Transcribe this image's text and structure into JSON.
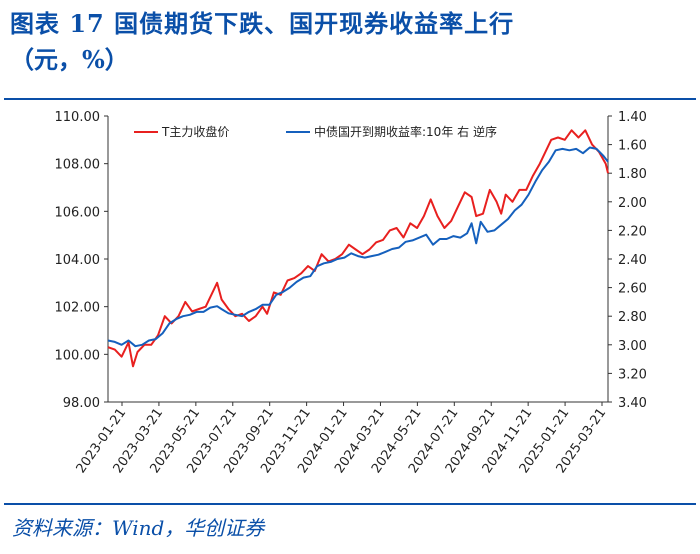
{
  "title": {
    "line1": "图表 17   国债期货下跌、国开现券收益率上行",
    "line2": "（元，%）"
  },
  "source": "资料来源：Wind，华创证券",
  "colors": {
    "series1": "#e8201f",
    "series2": "#1560bd",
    "title": "#0a4fa8",
    "axis": "#333333"
  },
  "chart_data": {
    "type": "line",
    "title": "国债期货下跌、国开现券收益率上行",
    "unit": "（元，%）",
    "x_ticks": [
      "2023-01-21",
      "2023-03-21",
      "2023-05-21",
      "2023-07-21",
      "2023-09-21",
      "2023-11-21",
      "2024-01-21",
      "2024-03-21",
      "2024-05-21",
      "2024-07-21",
      "2024-09-21",
      "2024-11-21",
      "2025-01-21",
      "2025-03-21"
    ],
    "left_axis": {
      "min": 98.0,
      "max": 110.0,
      "ticks": [
        "98.00",
        "100.00",
        "102.00",
        "104.00",
        "106.00",
        "108.00",
        "110.00"
      ]
    },
    "right_axis": {
      "min": 1.4,
      "max": 3.4,
      "reversed": true,
      "ticks": [
        "1.40",
        "1.60",
        "1.80",
        "2.00",
        "2.20",
        "2.40",
        "2.60",
        "2.80",
        "3.00",
        "3.20",
        "3.40"
      ]
    },
    "series": [
      {
        "name": "T主力收盘价",
        "axis": "left",
        "points": [
          [
            0,
            100.3
          ],
          [
            0.3,
            100.2
          ],
          [
            0.6,
            99.9
          ],
          [
            0.9,
            100.5
          ],
          [
            1.1,
            99.5
          ],
          [
            1.3,
            100.1
          ],
          [
            1.6,
            100.4
          ],
          [
            1.9,
            100.4
          ],
          [
            2.2,
            100.8
          ],
          [
            2.5,
            101.6
          ],
          [
            2.8,
            101.3
          ],
          [
            3.1,
            101.6
          ],
          [
            3.4,
            102.2
          ],
          [
            3.7,
            101.8
          ],
          [
            4.0,
            101.9
          ],
          [
            4.3,
            102.0
          ],
          [
            4.6,
            102.6
          ],
          [
            4.8,
            103.0
          ],
          [
            5.0,
            102.3
          ],
          [
            5.3,
            101.9
          ],
          [
            5.6,
            101.6
          ],
          [
            5.9,
            101.7
          ],
          [
            6.2,
            101.4
          ],
          [
            6.5,
            101.6
          ],
          [
            6.8,
            102.0
          ],
          [
            7.0,
            101.7
          ],
          [
            7.3,
            102.6
          ],
          [
            7.6,
            102.5
          ],
          [
            7.9,
            103.1
          ],
          [
            8.2,
            103.2
          ],
          [
            8.5,
            103.4
          ],
          [
            8.8,
            103.7
          ],
          [
            9.1,
            103.5
          ],
          [
            9.4,
            104.2
          ],
          [
            9.7,
            103.9
          ],
          [
            10.0,
            104.0
          ],
          [
            10.3,
            104.2
          ],
          [
            10.6,
            104.6
          ],
          [
            10.9,
            104.4
          ],
          [
            11.2,
            104.2
          ],
          [
            11.5,
            104.4
          ],
          [
            11.8,
            104.7
          ],
          [
            12.1,
            104.8
          ],
          [
            12.4,
            105.2
          ],
          [
            12.7,
            105.3
          ],
          [
            13.0,
            104.9
          ],
          [
            13.3,
            105.5
          ],
          [
            13.6,
            105.3
          ],
          [
            13.9,
            105.8
          ],
          [
            14.2,
            106.5
          ],
          [
            14.5,
            105.8
          ],
          [
            14.8,
            105.3
          ],
          [
            15.1,
            105.6
          ],
          [
            15.4,
            106.2
          ],
          [
            15.7,
            106.8
          ],
          [
            16.0,
            106.6
          ],
          [
            16.2,
            105.8
          ],
          [
            16.5,
            105.9
          ],
          [
            16.8,
            106.9
          ],
          [
            17.1,
            106.4
          ],
          [
            17.3,
            105.9
          ],
          [
            17.5,
            106.7
          ],
          [
            17.8,
            106.4
          ],
          [
            18.1,
            106.9
          ],
          [
            18.4,
            106.9
          ],
          [
            18.7,
            107.5
          ],
          [
            19.0,
            108.0
          ],
          [
            19.3,
            108.6
          ],
          [
            19.5,
            109.0
          ],
          [
            19.8,
            109.1
          ],
          [
            20.1,
            109.0
          ],
          [
            20.4,
            109.4
          ],
          [
            20.7,
            109.1
          ],
          [
            21.0,
            109.4
          ],
          [
            21.3,
            108.8
          ],
          [
            21.6,
            108.5
          ],
          [
            21.9,
            108.0
          ],
          [
            22.0,
            107.6
          ]
        ]
      },
      {
        "name": "中债国开到期收益率:10年 右 逆序",
        "axis": "right",
        "points": [
          [
            0,
            2.97
          ],
          [
            0.3,
            2.98
          ],
          [
            0.6,
            3.0
          ],
          [
            0.9,
            2.97
          ],
          [
            1.2,
            3.01
          ],
          [
            1.5,
            3.0
          ],
          [
            1.8,
            2.97
          ],
          [
            2.1,
            2.96
          ],
          [
            2.4,
            2.92
          ],
          [
            2.7,
            2.85
          ],
          [
            3.0,
            2.82
          ],
          [
            3.3,
            2.8
          ],
          [
            3.6,
            2.79
          ],
          [
            3.9,
            2.77
          ],
          [
            4.2,
            2.77
          ],
          [
            4.5,
            2.74
          ],
          [
            4.8,
            2.73
          ],
          [
            5.0,
            2.75
          ],
          [
            5.3,
            2.78
          ],
          [
            5.6,
            2.79
          ],
          [
            5.9,
            2.8
          ],
          [
            6.2,
            2.77
          ],
          [
            6.5,
            2.75
          ],
          [
            6.8,
            2.72
          ],
          [
            7.1,
            2.72
          ],
          [
            7.4,
            2.65
          ],
          [
            7.7,
            2.63
          ],
          [
            8.0,
            2.6
          ],
          [
            8.3,
            2.56
          ],
          [
            8.6,
            2.53
          ],
          [
            8.9,
            2.52
          ],
          [
            9.2,
            2.45
          ],
          [
            9.5,
            2.43
          ],
          [
            9.8,
            2.42
          ],
          [
            10.1,
            2.4
          ],
          [
            10.4,
            2.39
          ],
          [
            10.7,
            2.36
          ],
          [
            11.0,
            2.38
          ],
          [
            11.3,
            2.39
          ],
          [
            11.6,
            2.38
          ],
          [
            11.9,
            2.37
          ],
          [
            12.2,
            2.35
          ],
          [
            12.5,
            2.33
          ],
          [
            12.8,
            2.32
          ],
          [
            13.1,
            2.28
          ],
          [
            13.4,
            2.27
          ],
          [
            13.7,
            2.25
          ],
          [
            14.0,
            2.23
          ],
          [
            14.3,
            2.3
          ],
          [
            14.6,
            2.26
          ],
          [
            14.9,
            2.26
          ],
          [
            15.2,
            2.24
          ],
          [
            15.5,
            2.25
          ],
          [
            15.8,
            2.22
          ],
          [
            16.0,
            2.15
          ],
          [
            16.2,
            2.29
          ],
          [
            16.4,
            2.14
          ],
          [
            16.7,
            2.21
          ],
          [
            17.0,
            2.2
          ],
          [
            17.3,
            2.16
          ],
          [
            17.6,
            2.12
          ],
          [
            17.9,
            2.06
          ],
          [
            18.2,
            2.02
          ],
          [
            18.5,
            1.95
          ],
          [
            18.8,
            1.86
          ],
          [
            19.1,
            1.78
          ],
          [
            19.4,
            1.72
          ],
          [
            19.7,
            1.64
          ],
          [
            20.0,
            1.63
          ],
          [
            20.3,
            1.64
          ],
          [
            20.6,
            1.63
          ],
          [
            20.9,
            1.66
          ],
          [
            21.2,
            1.62
          ],
          [
            21.5,
            1.63
          ],
          [
            21.8,
            1.68
          ],
          [
            22.0,
            1.72
          ]
        ]
      }
    ],
    "x_range": [
      0,
      22
    ],
    "legend_position": "top"
  }
}
